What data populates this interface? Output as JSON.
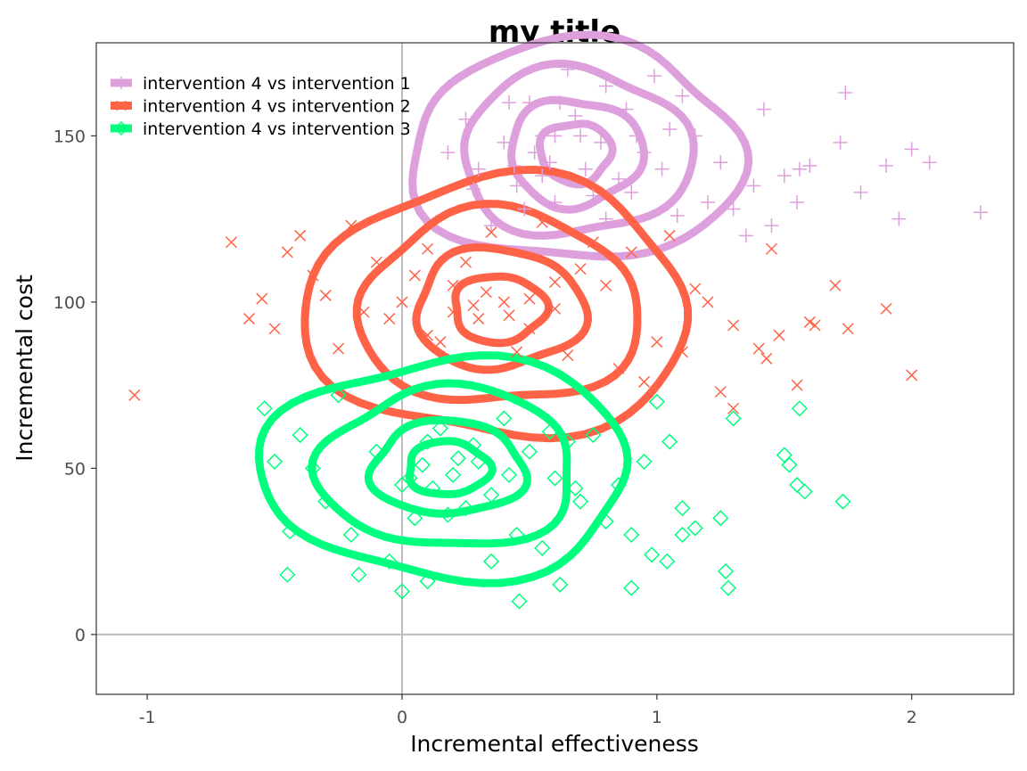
{
  "chart_data": {
    "type": "scatter",
    "title": "my title",
    "xlabel": "Incremental effectiveness",
    "ylabel": "Incremental cost",
    "xlim": [
      -1.2,
      2.4
    ],
    "ylim": [
      -18,
      178
    ],
    "x_ticks": [
      -1,
      0,
      1,
      2
    ],
    "x_tick_labels": [
      "-1",
      "0",
      "1",
      "2"
    ],
    "y_ticks": [
      0,
      50,
      100,
      150
    ],
    "y_tick_labels": [
      "0",
      "50",
      "100",
      "150"
    ],
    "reference_lines": {
      "x": 0,
      "y": 0
    },
    "grid": false,
    "legend_position": "top-left",
    "contours": true,
    "series": [
      {
        "name": "intervention 4 vs intervention 1",
        "color": "#DDA0DD",
        "marker": "plus",
        "center": [
          0.68,
          145
        ],
        "contour_radii": [
          [
            0.14,
            9
          ],
          [
            0.26,
            16
          ],
          [
            0.45,
            25
          ],
          [
            0.65,
            33
          ]
        ],
        "points": [
          [
            0.55,
            150
          ],
          [
            0.72,
            140
          ],
          [
            0.6,
            130
          ],
          [
            0.88,
            158
          ],
          [
            0.45,
            135
          ],
          [
            0.95,
            145
          ],
          [
            1.05,
            152
          ],
          [
            0.3,
            140
          ],
          [
            0.8,
            125
          ],
          [
            0.62,
            160
          ],
          [
            1.2,
            130
          ],
          [
            0.25,
            155
          ],
          [
            1.35,
            120
          ],
          [
            0.48,
            128
          ],
          [
            0.78,
            148
          ],
          [
            1.1,
            162
          ],
          [
            0.9,
            133
          ],
          [
            0.35,
            123
          ],
          [
            1.5,
            138
          ],
          [
            0.18,
            145
          ],
          [
            1.6,
            141
          ],
          [
            1.72,
            148
          ],
          [
            1.9,
            141
          ],
          [
            2.0,
            146
          ],
          [
            2.07,
            142
          ],
          [
            2.27,
            127
          ],
          [
            1.8,
            133
          ],
          [
            1.95,
            125
          ],
          [
            1.55,
            130
          ],
          [
            1.42,
            158
          ],
          [
            1.3,
            128
          ],
          [
            0.65,
            170
          ],
          [
            0.99,
            168
          ],
          [
            1.15,
            150
          ],
          [
            0.5,
            160
          ],
          [
            0.42,
            160
          ],
          [
            0.28,
            134
          ],
          [
            0.4,
            148
          ],
          [
            0.85,
            137
          ],
          [
            1.02,
            140
          ],
          [
            0.75,
            132
          ],
          [
            0.58,
            142
          ],
          [
            0.68,
            156
          ],
          [
            0.92,
            150
          ],
          [
            0.55,
            138
          ],
          [
            1.25,
            142
          ],
          [
            1.38,
            135
          ],
          [
            1.45,
            123
          ],
          [
            1.74,
            163
          ],
          [
            1.56,
            140
          ],
          [
            0.8,
            165
          ],
          [
            0.7,
            150
          ],
          [
            0.6,
            150
          ],
          [
            0.52,
            145
          ],
          [
            1.08,
            126
          ],
          [
            0.44,
            141
          ]
        ]
      },
      {
        "name": "intervention 4 vs intervention 2",
        "color": "#FF6347",
        "marker": "cross",
        "center": [
          0.38,
          98
        ],
        "contour_radii": [
          [
            0.18,
            10
          ],
          [
            0.33,
            18
          ],
          [
            0.55,
            29
          ],
          [
            0.75,
            39
          ]
        ],
        "points": [
          [
            -1.05,
            72
          ],
          [
            -0.67,
            118
          ],
          [
            -0.6,
            95
          ],
          [
            -0.5,
            92
          ],
          [
            -0.4,
            120
          ],
          [
            -0.35,
            108
          ],
          [
            -0.2,
            123
          ],
          [
            -0.1,
            112
          ],
          [
            0.0,
            100
          ],
          [
            0.1,
            90
          ],
          [
            0.2,
            105
          ],
          [
            0.3,
            95
          ],
          [
            0.4,
            100
          ],
          [
            0.5,
            92
          ],
          [
            0.6,
            98
          ],
          [
            0.7,
            110
          ],
          [
            0.8,
            105
          ],
          [
            0.9,
            115
          ],
          [
            1.0,
            88
          ],
          [
            1.1,
            85
          ],
          [
            1.2,
            100
          ],
          [
            1.3,
            93
          ],
          [
            1.4,
            86
          ],
          [
            1.45,
            116
          ],
          [
            1.48,
            90
          ],
          [
            1.6,
            94
          ],
          [
            1.7,
            105
          ],
          [
            1.75,
            92
          ],
          [
            1.9,
            98
          ],
          [
            2.0,
            78
          ],
          [
            1.55,
            75
          ],
          [
            1.3,
            68
          ],
          [
            1.25,
            73
          ],
          [
            0.95,
            76
          ],
          [
            0.85,
            80
          ],
          [
            0.75,
            118
          ],
          [
            0.55,
            124
          ],
          [
            0.35,
            121
          ],
          [
            0.25,
            112
          ],
          [
            0.15,
            88
          ],
          [
            -0.05,
            95
          ],
          [
            -0.25,
            86
          ],
          [
            -0.3,
            102
          ],
          [
            0.05,
            108
          ],
          [
            0.45,
            85
          ],
          [
            0.65,
            84
          ],
          [
            1.15,
            104
          ],
          [
            0.42,
            96
          ],
          [
            0.33,
            103
          ],
          [
            0.28,
            99
          ],
          [
            0.5,
            101
          ],
          [
            0.2,
            97
          ],
          [
            0.6,
            106
          ],
          [
            0.1,
            116
          ],
          [
            -0.15,
            97
          ],
          [
            1.05,
            120
          ],
          [
            1.62,
            93
          ],
          [
            1.43,
            83
          ],
          [
            -0.45,
            115
          ],
          [
            -0.55,
            101
          ]
        ]
      },
      {
        "name": "intervention 4 vs intervention 3",
        "color": "#00FF7F",
        "marker": "diamond",
        "center": [
          0.18,
          50
        ],
        "contour_radii": [
          [
            0.16,
            8
          ],
          [
            0.3,
            14
          ],
          [
            0.5,
            24
          ],
          [
            0.72,
            33
          ]
        ],
        "points": [
          [
            -0.54,
            68
          ],
          [
            -0.45,
            18
          ],
          [
            -0.4,
            60
          ],
          [
            -0.35,
            50
          ],
          [
            -0.3,
            40
          ],
          [
            -0.25,
            72
          ],
          [
            -0.2,
            30
          ],
          [
            -0.1,
            55
          ],
          [
            0.0,
            45
          ],
          [
            0.05,
            35
          ],
          [
            0.1,
            58
          ],
          [
            0.15,
            62
          ],
          [
            0.2,
            48
          ],
          [
            0.25,
            38
          ],
          [
            0.3,
            52
          ],
          [
            0.35,
            42
          ],
          [
            0.4,
            65
          ],
          [
            0.45,
            30
          ],
          [
            0.5,
            55
          ],
          [
            0.55,
            26
          ],
          [
            0.6,
            47
          ],
          [
            0.65,
            58
          ],
          [
            0.7,
            40
          ],
          [
            0.75,
            60
          ],
          [
            0.8,
            34
          ],
          [
            0.85,
            45
          ],
          [
            0.9,
            30
          ],
          [
            0.95,
            52
          ],
          [
            1.0,
            70
          ],
          [
            1.05,
            58
          ],
          [
            1.1,
            38
          ],
          [
            1.15,
            32
          ],
          [
            1.25,
            35
          ],
          [
            1.27,
            19
          ],
          [
            1.28,
            14
          ],
          [
            1.3,
            65
          ],
          [
            1.5,
            54
          ],
          [
            1.52,
            51
          ],
          [
            1.55,
            45
          ],
          [
            1.58,
            43
          ],
          [
            1.56,
            68
          ],
          [
            1.73,
            40
          ],
          [
            0.9,
            14
          ],
          [
            0.46,
            10
          ],
          [
            0.0,
            13
          ],
          [
            0.1,
            16
          ],
          [
            0.62,
            15
          ],
          [
            0.35,
            22
          ],
          [
            0.28,
            57
          ],
          [
            -0.17,
            18
          ],
          [
            -0.05,
            22
          ],
          [
            0.12,
            44
          ],
          [
            0.22,
            53
          ],
          [
            0.18,
            36
          ],
          [
            0.08,
            51
          ],
          [
            0.42,
            48
          ],
          [
            0.58,
            61
          ],
          [
            0.68,
            44
          ],
          [
            1.1,
            30
          ],
          [
            0.98,
            24
          ],
          [
            1.04,
            22
          ],
          [
            0.03,
            47
          ],
          [
            -0.44,
            31
          ],
          [
            -0.5,
            52
          ]
        ]
      }
    ]
  }
}
